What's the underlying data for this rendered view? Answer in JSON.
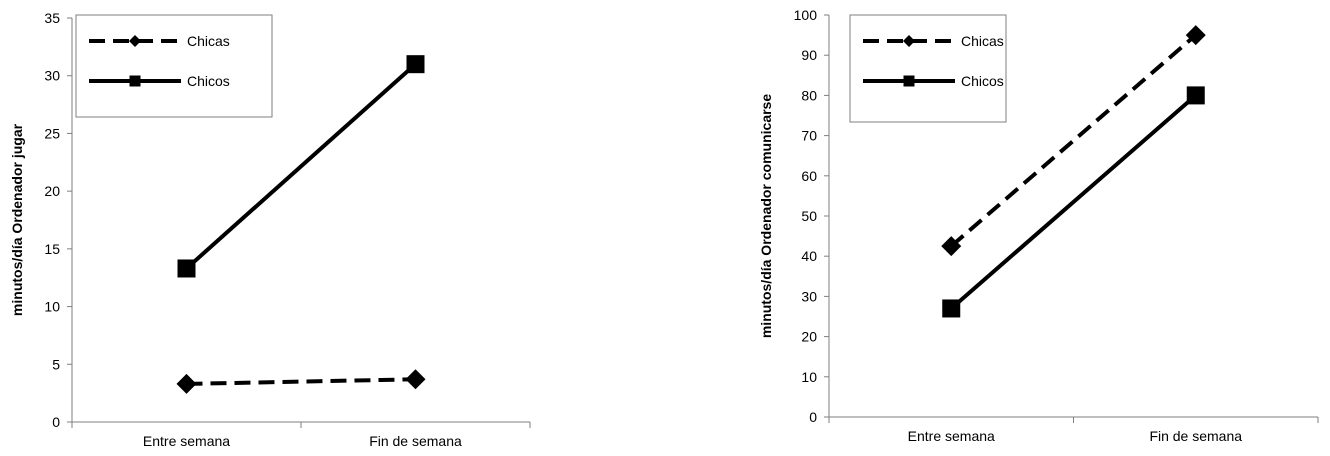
{
  "chart_data": [
    {
      "type": "line",
      "categories": [
        "Entre semana",
        "Fin de semana"
      ],
      "ylabel": "minutos/día Ordenador jugar",
      "ylim": [
        0,
        35
      ],
      "yticks": [
        0,
        5,
        10,
        15,
        20,
        25,
        30,
        35
      ],
      "grid": false,
      "legend_position": "top-left",
      "series": [
        {
          "name": "Chicas",
          "values": [
            3.3,
            3.7
          ],
          "style": "dashed",
          "marker": "diamond",
          "color": "#000000"
        },
        {
          "name": "Chicos",
          "values": [
            13.3,
            31.0
          ],
          "style": "solid",
          "marker": "square",
          "color": "#000000"
        }
      ]
    },
    {
      "type": "line",
      "categories": [
        "Entre semana",
        "Fin de semana"
      ],
      "ylabel": "minutos/día Ordenador comunicarse",
      "ylim": [
        0,
        100
      ],
      "yticks": [
        0,
        10,
        20,
        30,
        40,
        50,
        60,
        70,
        80,
        90,
        100
      ],
      "grid": false,
      "legend_position": "top-left",
      "series": [
        {
          "name": "Chicas",
          "values": [
            42.5,
            95.0
          ],
          "style": "dashed",
          "marker": "diamond",
          "color": "#000000"
        },
        {
          "name": "Chicos",
          "values": [
            27.0,
            80.0
          ],
          "style": "solid",
          "marker": "square",
          "color": "#000000"
        }
      ]
    }
  ]
}
